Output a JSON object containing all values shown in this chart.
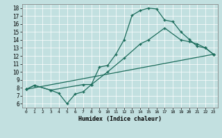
{
  "title": "",
  "xlabel": "Humidex (Indice chaleur)",
  "bg_color": "#c2e0e0",
  "line_color": "#1a6b5a",
  "marker": "+",
  "xlim": [
    -0.5,
    23.5
  ],
  "ylim": [
    5.5,
    18.5
  ],
  "xticks": [
    0,
    1,
    2,
    3,
    4,
    5,
    6,
    7,
    8,
    9,
    10,
    11,
    12,
    13,
    14,
    15,
    16,
    17,
    18,
    19,
    20,
    21,
    22,
    23
  ],
  "yticks": [
    6,
    7,
    8,
    9,
    10,
    11,
    12,
    13,
    14,
    15,
    16,
    17,
    18
  ],
  "line1_x": [
    0,
    1,
    3,
    4,
    5,
    6,
    7,
    8,
    9,
    10,
    11,
    12,
    13,
    14,
    15,
    16,
    17,
    18,
    19,
    20,
    21,
    22,
    23
  ],
  "line1_y": [
    7.8,
    8.3,
    7.7,
    7.3,
    6.0,
    7.2,
    7.5,
    8.4,
    10.6,
    10.8,
    12.2,
    14.0,
    17.1,
    17.7,
    18.0,
    17.9,
    16.5,
    16.3,
    15.0,
    14.1,
    13.2,
    13.0,
    12.2
  ],
  "line2_x": [
    0,
    1,
    3,
    7,
    8,
    10,
    12,
    14,
    15,
    17,
    19,
    20,
    21,
    22,
    23
  ],
  "line2_y": [
    7.8,
    8.3,
    7.7,
    8.4,
    8.4,
    10.0,
    11.7,
    13.5,
    14.0,
    15.5,
    14.0,
    13.8,
    13.5,
    13.0,
    12.2
  ],
  "line3_x": [
    0,
    23
  ],
  "line3_y": [
    7.8,
    12.2
  ],
  "grid_color": "#ffffff",
  "spine_color": "#888888"
}
